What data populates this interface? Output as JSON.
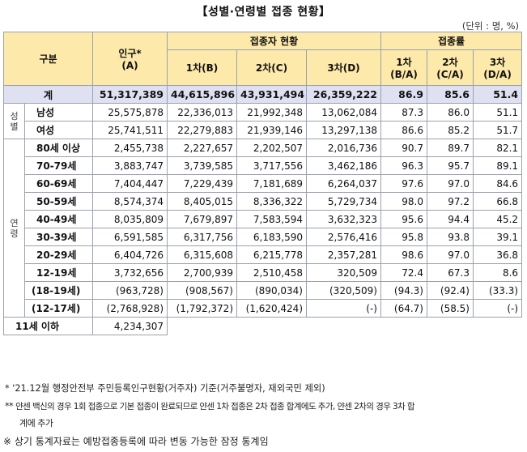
{
  "title": "【성별·연령별 접종 현황】",
  "unit": "(단위 : 명, %)",
  "header": {
    "category": "구분",
    "population": "인구*",
    "population_sub": "(A)",
    "vaccinated": "접종자 현황",
    "rate": "접종률",
    "dose1": "1차(B)",
    "dose2": "2차(C)",
    "dose3": "3차(D)",
    "rate1": "1차",
    "rate1_sub": "(B/A)",
    "rate2": "2차",
    "rate2_sub": "(C/A)",
    "rate3": "3차",
    "rate3_sub": "(D/A)"
  },
  "total": {
    "label": "계",
    "values": [
      "51,317,389",
      "44,615,896",
      "43,931,494",
      "26,359,222",
      "86.9",
      "85.6",
      "51.4"
    ]
  },
  "gender_group": [
    "성",
    "별"
  ],
  "gender": [
    {
      "label": "남성",
      "values": [
        "25,575,878",
        "22,336,013",
        "21,992,348",
        "13,062,084",
        "87.3",
        "86.0",
        "51.1"
      ]
    },
    {
      "label": "여성",
      "values": [
        "25,741,511",
        "22,279,883",
        "21,939,146",
        "13,297,138",
        "86.6",
        "85.2",
        "51.7"
      ]
    }
  ],
  "age_group": [
    "연",
    "령"
  ],
  "ages": [
    {
      "label": "80세 이상",
      "values": [
        "2,455,738",
        "2,227,657",
        "2,202,507",
        "2,016,736",
        "90.7",
        "89.7",
        "82.1"
      ]
    },
    {
      "label": "70-79세",
      "values": [
        "3,883,747",
        "3,739,585",
        "3,717,556",
        "3,462,186",
        "96.3",
        "95.7",
        "89.1"
      ]
    },
    {
      "label": "60-69세",
      "values": [
        "7,404,447",
        "7,229,439",
        "7,181,689",
        "6,264,037",
        "97.6",
        "97.0",
        "84.6"
      ]
    },
    {
      "label": "50-59세",
      "values": [
        "8,574,374",
        "8,405,015",
        "8,336,322",
        "5,729,734",
        "98.0",
        "97.2",
        "66.8"
      ]
    },
    {
      "label": "40-49세",
      "values": [
        "8,035,809",
        "7,679,897",
        "7,583,594",
        "3,632,323",
        "95.6",
        "94.4",
        "45.2"
      ]
    },
    {
      "label": "30-39세",
      "values": [
        "6,591,585",
        "6,317,756",
        "6,183,590",
        "2,576,416",
        "95.8",
        "93.8",
        "39.1"
      ]
    },
    {
      "label": "20-29세",
      "values": [
        "6,404,726",
        "6,315,608",
        "6,215,778",
        "2,357,281",
        "98.6",
        "97.0",
        "36.8"
      ]
    },
    {
      "label": "12-19세",
      "values": [
        "3,732,656",
        "2,700,939",
        "2,510,458",
        "320,509",
        "72.4",
        "67.3",
        "8.6"
      ]
    }
  ],
  "sub_rows": [
    {
      "label": "(18-19세)",
      "values": [
        "(963,728)",
        "(908,567)",
        "(890,034)",
        "(320,509)",
        "(94.3)",
        "(92.4)",
        "(33.3)"
      ]
    },
    {
      "label": "(12-17세)",
      "values": [
        "(2,768,928)",
        "(1,792,372)",
        "(1,620,424)",
        "(-)",
        "(64.7)",
        "(58.5)",
        "(-)"
      ]
    }
  ],
  "under11": {
    "label": "11세 이하",
    "population": "4,234,307"
  },
  "footnotes": {
    "f1_mark": "*",
    "f1": "'21.12월 행정안전부 주민등록인구현황(거주자) 기준(거주불명자, 재외국민 제외)",
    "f2_mark": "**",
    "f2a": "얀센 백신의 경우 1회 접종으로 기본 접종이 완료되므로 얀센 1차 접종은 2차 접종 합계에도 추가, 얀센 2차의 경우 3차 합",
    "f2b": "계에 추가",
    "f3": "※ 상기 통계자료는 예방접종등록에 따라 변동 가능한 잠정 통계임"
  }
}
